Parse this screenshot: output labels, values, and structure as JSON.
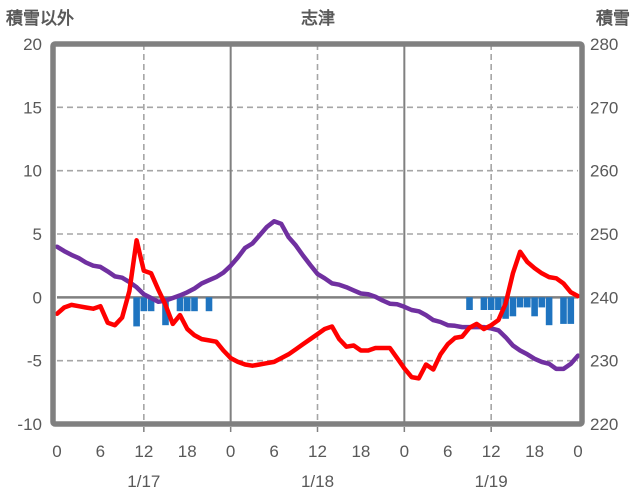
{
  "chart_data": {
    "type": "combo",
    "title": "志津",
    "left_axis": {
      "label": "積雪以外",
      "min": -10,
      "max": 20,
      "ticks": [
        20,
        15,
        10,
        5,
        0,
        -5,
        -10
      ],
      "dashed_gridlines": [
        15,
        10,
        5,
        -5
      ],
      "zero_line": 0
    },
    "right_axis": {
      "label": "積雪",
      "min": 220,
      "max": 280,
      "ticks": [
        280,
        270,
        260,
        250,
        240,
        230,
        220
      ]
    },
    "x_axis": {
      "total_hours": 72,
      "tick_interval_hours": 6,
      "tick_labels": [
        "0",
        "6",
        "12",
        "18",
        "0",
        "6",
        "12",
        "18",
        "0",
        "6",
        "12",
        "18",
        "0"
      ],
      "dashed_gridline_hours": [
        12,
        36,
        60
      ],
      "solid_gridline_hours": [
        24,
        48
      ],
      "minor_tick_hours": [
        12,
        24,
        36,
        48,
        60
      ],
      "date_labels": [
        {
          "label": "1/17",
          "hour": 12
        },
        {
          "label": "1/18",
          "hour": 36
        },
        {
          "label": "1/19",
          "hour": 60
        }
      ]
    },
    "series": [
      {
        "name": "hourly-bars",
        "type": "bar",
        "axis": "left",
        "color": "#1F74C0",
        "points": [
          [
            11,
            -2.3
          ],
          [
            12,
            -1.1
          ],
          [
            13,
            -1.1
          ],
          [
            15,
            -2.2
          ],
          [
            17,
            -1.1
          ],
          [
            18,
            -1.1
          ],
          [
            19,
            -1.1
          ],
          [
            21,
            -1.1
          ],
          [
            57,
            -1.0
          ],
          [
            59,
            -1.0
          ],
          [
            60,
            -1.0
          ],
          [
            61,
            -1.0
          ],
          [
            62,
            -1.7
          ],
          [
            63,
            -1.5
          ],
          [
            64,
            -0.8
          ],
          [
            65,
            -0.8
          ],
          [
            66,
            -1.5
          ],
          [
            67,
            -0.8
          ],
          [
            68,
            -2.2
          ],
          [
            70,
            -2.1
          ],
          [
            71,
            -2.1
          ]
        ]
      },
      {
        "name": "snow-depth",
        "type": "line",
        "axis": "right",
        "color": "#7030A0",
        "values": [
          248,
          247.3,
          246.7,
          246.2,
          245.5,
          245,
          244.8,
          244.1,
          243.3,
          243.1,
          242.4,
          241.6,
          240.5,
          239.9,
          239.3,
          239.5,
          239.9,
          240.3,
          240.8,
          241.4,
          242.2,
          242.7,
          243.2,
          243.9,
          245,
          246.3,
          247.8,
          248.5,
          249.8,
          251.1,
          252,
          251.6,
          249.5,
          248.2,
          246.6,
          245.1,
          243.7,
          243,
          242.2,
          242,
          241.6,
          241.1,
          240.6,
          240.5,
          240.1,
          239.5,
          239,
          238.9,
          238.5,
          238,
          237.8,
          237.2,
          236.4,
          236.1,
          235.6,
          235.5,
          235.3,
          235.3,
          235.3,
          235.3,
          235.1,
          234.8,
          233.7,
          232.4,
          231.6,
          231,
          230.3,
          229.8,
          229.5,
          228.7,
          228.7,
          229.5,
          230.8
        ]
      },
      {
        "name": "temperature",
        "type": "line",
        "axis": "left",
        "color": "#FF0000",
        "values": [
          -1.3,
          -0.8,
          -0.6,
          -0.7,
          -0.8,
          -0.9,
          -0.7,
          -2.0,
          -2.2,
          -1.6,
          0.5,
          4.5,
          2.1,
          1.9,
          0.6,
          -0.6,
          -2.1,
          -1.4,
          -2.5,
          -3.0,
          -3.3,
          -3.4,
          -3.5,
          -4.2,
          -4.8,
          -5.1,
          -5.3,
          -5.4,
          -5.3,
          -5.2,
          -5.1,
          -4.8,
          -4.5,
          -4.1,
          -3.7,
          -3.3,
          -2.9,
          -2.5,
          -2.3,
          -3.3,
          -3.9,
          -3.8,
          -4.2,
          -4.2,
          -4.0,
          -4.0,
          -4.0,
          -4.8,
          -5.6,
          -6.3,
          -6.4,
          -5.3,
          -5.7,
          -4.5,
          -3.7,
          -3.2,
          -3.1,
          -2.4,
          -2.1,
          -2.5,
          -2.2,
          -1.8,
          -0.5,
          1.9,
          3.6,
          2.8,
          2.3,
          1.9,
          1.6,
          1.5,
          1.1,
          0.4,
          0.1
        ]
      }
    ],
    "colors": {
      "dashed_grid": "#A6A6A6",
      "solid_grid": "#808080",
      "border": "#808080",
      "text": "#595959",
      "background": "#FFFFFF"
    },
    "legend": "none",
    "grid": "on"
  }
}
